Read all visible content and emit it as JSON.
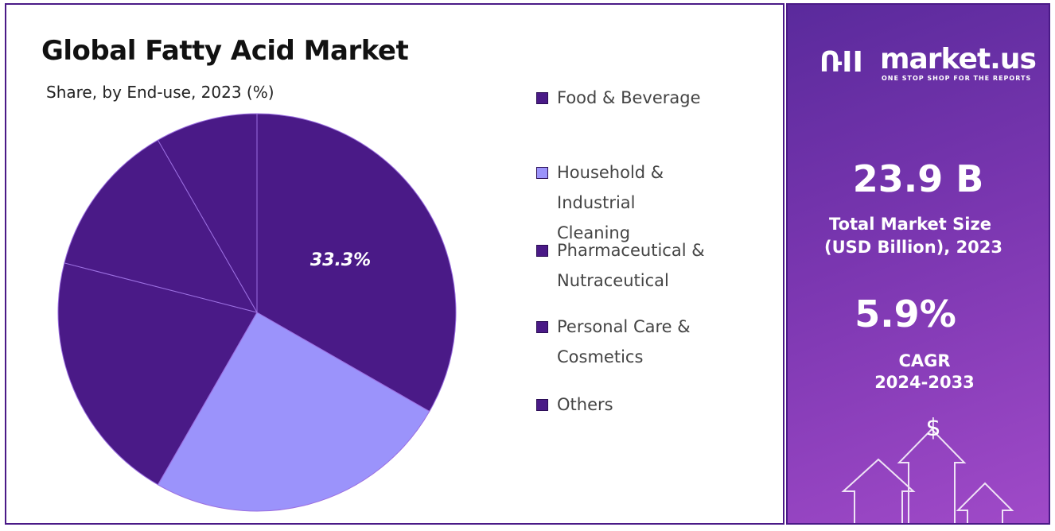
{
  "title": "Global Fatty Acid Market",
  "subtitle": "Share, by End-use, 2023 (%)",
  "chart_data": {
    "type": "pie",
    "title": "Global Fatty Acid Market",
    "subtitle": "Share, by End-use, 2023 (%)",
    "categories": [
      "Food & Beverage",
      "Household & Industrial Cleaning",
      "Pharmaceutical & Nutraceutical",
      "Personal Care & Cosmetics",
      "Others"
    ],
    "values": [
      33.3,
      25.0,
      20.7,
      12.7,
      8.3
    ],
    "colors": [
      "#4a1a87",
      "#9b93fb",
      "#4a1a87",
      "#4a1a87",
      "#4a1a87"
    ],
    "data_labels": [
      "33.3%",
      "",
      "",
      "",
      ""
    ],
    "legend_placement": "right"
  },
  "legend": [
    "Food & Beverage",
    "Household & Industrial Cleaning",
    "Pharmaceutical & Nutraceutical",
    "Personal Care & Cosmetics",
    "Others"
  ],
  "sidebar": {
    "brand": "market.us",
    "tagline": "ONE STOP SHOP FOR THE REPORTS",
    "market_size": "23.9 B",
    "market_size_label_1": "Total Market Size",
    "market_size_label_2": "(USD Billion), 2023",
    "cagr": "5.9%",
    "cagr_label_1": "CAGR",
    "cagr_label_2": "2024-2033",
    "dollar": "$"
  }
}
